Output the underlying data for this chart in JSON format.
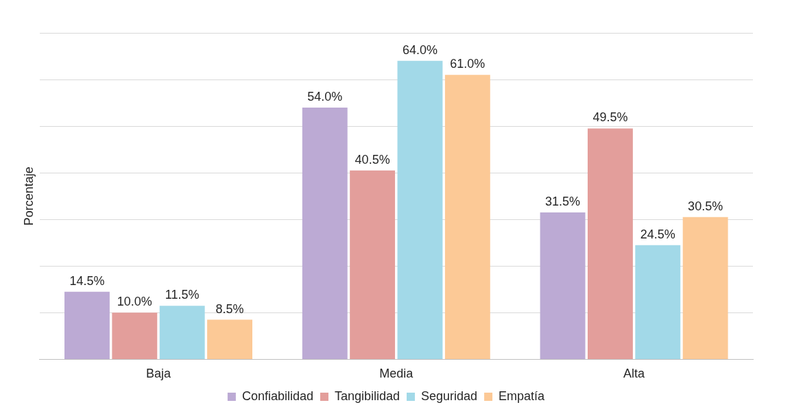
{
  "chart_data": {
    "type": "bar",
    "ylabel": "Porcentaje",
    "categories": [
      "Baja",
      "Media",
      "Alta"
    ],
    "series": [
      {
        "name": "Confiabilidad",
        "color": "#bcaad4",
        "values": [
          14.5,
          54.0,
          31.5
        ],
        "value_labels": [
          "14.5%",
          "54.0%",
          "31.5%"
        ]
      },
      {
        "name": "Tangibilidad",
        "color": "#e39e9b",
        "values": [
          10.0,
          40.5,
          49.5
        ],
        "value_labels": [
          "10.0%",
          "40.5%",
          "49.5%"
        ]
      },
      {
        "name": "Seguridad",
        "color": "#a2d9e8",
        "values": [
          11.5,
          64.0,
          24.5
        ],
        "value_labels": [
          "11.5%",
          "64.0%",
          "24.5%"
        ]
      },
      {
        "name": "Empatía",
        "color": "#fcc996",
        "values": [
          8.5,
          61.0,
          30.5
        ],
        "value_labels": [
          "8.5%",
          "61.0%",
          "30.5%"
        ]
      }
    ],
    "ylim": [
      0,
      70
    ],
    "yticks": [
      {
        "value": 0,
        "label": null
      },
      {
        "value": 10,
        "label": null
      },
      {
        "value": 20,
        "label": null
      },
      {
        "value": 30,
        "label": null
      },
      {
        "value": 40,
        "label": null
      },
      {
        "value": 50,
        "label": null
      },
      {
        "value": 60,
        "label": null
      },
      {
        "value": 70,
        "label": null
      }
    ],
    "tick_labels": "x",
    "grid": "y",
    "legend": "bottom"
  }
}
